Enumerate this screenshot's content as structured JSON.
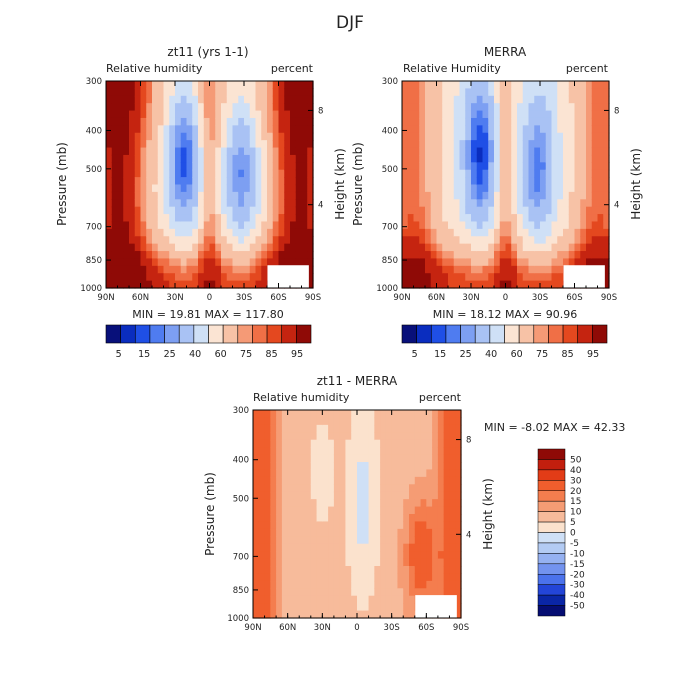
{
  "page": {
    "season_title": "DJF"
  },
  "chart_data": [
    {
      "type": "heatmap",
      "title": "zt11 (yrs 1-1)",
      "subtitle_left": "Relative humidity",
      "subtitle_right": "percent",
      "ylabel": "Pressure (mb)",
      "y2label": "Height (km)",
      "x_ticks": [
        "90N",
        "60N",
        "30N",
        "0",
        "30S",
        "60S",
        "90S"
      ],
      "y_ticks": [
        300,
        400,
        500,
        700,
        850,
        1000
      ],
      "y2_ticks": [
        8,
        4
      ],
      "ylim": [
        1000,
        300
      ],
      "stats": "MIN =   19.81   MAX = 117.80",
      "colorbar_labels": [
        "5",
        "15",
        "25",
        "40",
        "60",
        "75",
        "85",
        "95"
      ],
      "min": 19.81,
      "max": 117.8
    },
    {
      "type": "heatmap",
      "title": "MERRA",
      "subtitle_left": "Relative Humidity",
      "subtitle_right": "percent",
      "ylabel": "Pressure (mb)",
      "y2label": "Height (km)",
      "x_ticks": [
        "90N",
        "60N",
        "30N",
        "0",
        "30S",
        "60S",
        "90S"
      ],
      "y_ticks": [
        300,
        400,
        500,
        700,
        850,
        1000
      ],
      "y2_ticks": [
        8,
        4
      ],
      "ylim": [
        1000,
        300
      ],
      "stats": "MIN =   18.12   MAX =   90.96",
      "colorbar_labels": [
        "5",
        "15",
        "25",
        "40",
        "60",
        "75",
        "85",
        "95"
      ],
      "min": 18.12,
      "max": 90.96
    },
    {
      "type": "heatmap",
      "title": "zt11 - MERRA",
      "subtitle_left": "Relative humidity",
      "subtitle_right": "percent",
      "ylabel": "Pressure (mb)",
      "y2label": "Height (km)",
      "x_ticks": [
        "90N",
        "60N",
        "30N",
        "0",
        "30S",
        "60S",
        "90S"
      ],
      "y_ticks": [
        300,
        400,
        500,
        700,
        850,
        1000
      ],
      "y2_ticks": [
        8,
        4
      ],
      "ylim": [
        1000,
        300
      ],
      "stats": "MIN =   -8.02    MAX =   42.33",
      "colorbar_labels": [
        "50",
        "40",
        "30",
        "20",
        "15",
        "10",
        "5",
        "0",
        "-5",
        "-10",
        "-15",
        "-20",
        "-30",
        "-40",
        "-50"
      ],
      "min": -8.02,
      "max": 42.33
    }
  ],
  "colors": {
    "abs_scale": [
      "#08107a",
      "#0a2dbf",
      "#1f4fe6",
      "#4f7cf0",
      "#7d9ff2",
      "#a9c2f4",
      "#cfe0f6",
      "#fbe4d3",
      "#f7c2a6",
      "#f59a76",
      "#f06f46",
      "#e4481f",
      "#c52410",
      "#8f0a06"
    ],
    "diff_scale": [
      "#8f0a06",
      "#c21f0e",
      "#e23c17",
      "#f05e2d",
      "#f47d4e",
      "#f59c74",
      "#f7bb9b",
      "#fbe2cd",
      "#cfe0f6",
      "#b3cbf3",
      "#95b1f1",
      "#7393ef",
      "#4b72ec",
      "#2345d8",
      "#0a26a6",
      "#050d72"
    ]
  }
}
